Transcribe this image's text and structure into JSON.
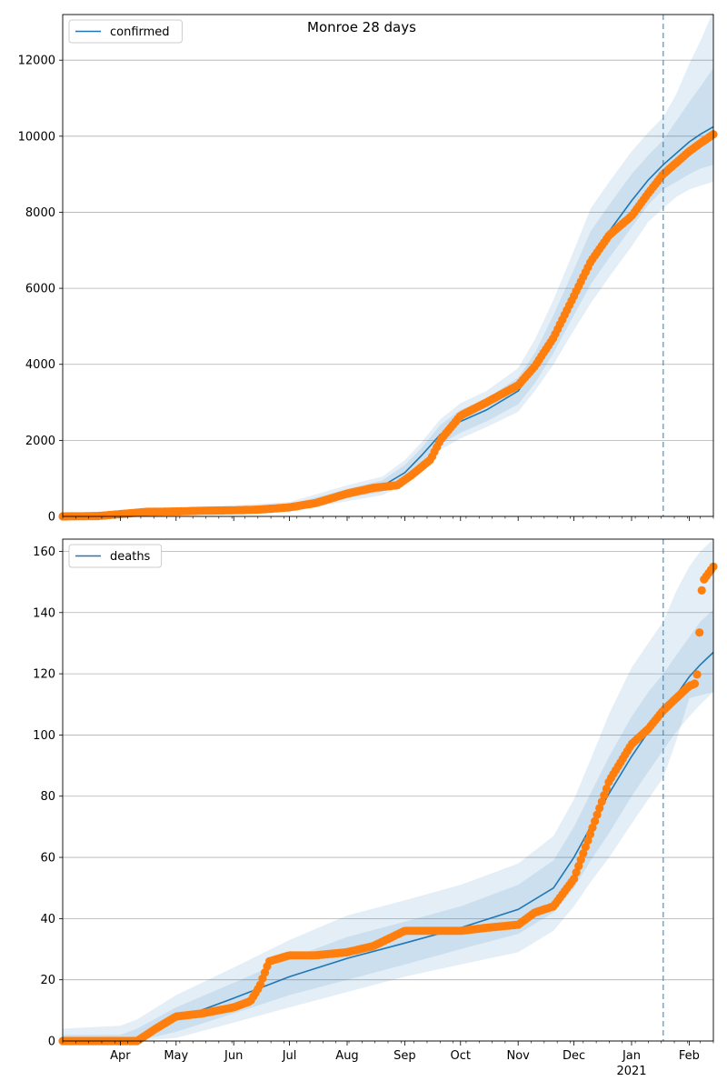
{
  "title": "Monroe 28 days",
  "colors": {
    "model_line": "#1f77b4",
    "band": "#1f77b4",
    "observed": "#ff7f0e",
    "grid": "#b0b0b0",
    "forecast_marker": "#1f77b4"
  },
  "x_axis": {
    "start": "2020-03-01",
    "end": "2021-02-14",
    "ticks": [
      {
        "date": "2020-04-01",
        "label": "Apr"
      },
      {
        "date": "2020-05-01",
        "label": "May"
      },
      {
        "date": "2020-06-01",
        "label": "Jun"
      },
      {
        "date": "2020-07-01",
        "label": "Jul"
      },
      {
        "date": "2020-08-01",
        "label": "Aug"
      },
      {
        "date": "2020-09-01",
        "label": "Sep"
      },
      {
        "date": "2020-10-01",
        "label": "Oct"
      },
      {
        "date": "2020-11-01",
        "label": "Nov"
      },
      {
        "date": "2020-12-01",
        "label": "Dec"
      },
      {
        "date": "2021-01-01",
        "label": "Jan"
      },
      {
        "date": "2021-02-01",
        "label": "Feb"
      }
    ],
    "year_label": "2021",
    "forecast_start": "2021-01-18"
  },
  "chart_data": [
    {
      "type": "line",
      "legend": "confirmed",
      "legend_position": "top-left",
      "grid": true,
      "ylim": [
        0,
        13200
      ],
      "yticks": [
        0,
        2000,
        4000,
        6000,
        8000,
        10000,
        12000
      ],
      "model": {
        "dates": [
          "2020-03-01",
          "2020-04-01",
          "2020-05-01",
          "2020-06-01",
          "2020-07-01",
          "2020-08-01",
          "2020-08-20",
          "2020-09-01",
          "2020-09-10",
          "2020-09-20",
          "2020-10-01",
          "2020-10-15",
          "2020-11-01",
          "2020-11-10",
          "2020-11-20",
          "2020-12-01",
          "2020-12-10",
          "2020-12-20",
          "2021-01-01",
          "2021-01-10",
          "2021-01-18",
          "2021-01-25",
          "2021-02-01",
          "2021-02-07",
          "2021-02-14"
        ],
        "values": [
          0,
          40,
          110,
          170,
          240,
          600,
          800,
          1150,
          1600,
          2150,
          2500,
          2800,
          3300,
          3900,
          4800,
          5900,
          6800,
          7500,
          8300,
          8850,
          9250,
          9550,
          9850,
          10050,
          10250
        ],
        "bands": [
          {
            "lo": [
              0,
              0,
              60,
              110,
              170,
              480,
              650,
              950,
              1400,
              1900,
              2200,
              2500,
              2950,
              3500,
              4300,
              5300,
              6100,
              6800,
              7600,
              8200,
              8600,
              8800,
              9000,
              9150,
              9250
            ],
            "hi": [
              0,
              80,
              160,
              230,
              310,
              720,
              950,
              1350,
              1800,
              2400,
              2800,
              3100,
              3650,
              4300,
              5300,
              6500,
              7500,
              8200,
              9000,
              9500,
              9900,
              10400,
              10900,
              11300,
              11800
            ]
          },
          {
            "lo": [
              0,
              0,
              30,
              70,
              120,
              400,
              560,
              850,
              1250,
              1750,
              2050,
              2350,
              2750,
              3300,
              4000,
              4900,
              5600,
              6300,
              7100,
              7750,
              8100,
              8400,
              8600,
              8700,
              8800
            ],
            "hi": [
              0,
              120,
              220,
              290,
              380,
              820,
              1050,
              1480,
              1950,
              2550,
              2980,
              3300,
              3900,
              4650,
              5700,
              7000,
              8100,
              8800,
              9600,
              10100,
              10500,
              11100,
              11900,
              12500,
              13300
            ]
          }
        ]
      },
      "observed": {
        "dates": [
          "2020-03-01",
          "2020-03-20",
          "2020-04-01",
          "2020-04-15",
          "2020-05-01",
          "2020-05-15",
          "2020-06-01",
          "2020-06-15",
          "2020-07-01",
          "2020-07-15",
          "2020-08-01",
          "2020-08-15",
          "2020-08-28",
          "2020-09-05",
          "2020-09-15",
          "2020-09-20",
          "2020-10-01",
          "2020-10-15",
          "2020-11-01",
          "2020-11-10",
          "2020-11-20",
          "2020-12-01",
          "2020-12-10",
          "2020-12-20",
          "2021-01-01",
          "2021-01-10",
          "2021-01-18",
          "2021-01-25",
          "2021-02-01",
          "2021-02-08",
          "2021-02-14"
        ],
        "values": [
          0,
          10,
          60,
          120,
          130,
          150,
          160,
          180,
          240,
          350,
          600,
          750,
          820,
          1100,
          1500,
          2000,
          2650,
          3000,
          3450,
          3950,
          4700,
          5800,
          6700,
          7400,
          7900,
          8500,
          9000,
          9300,
          9600,
          9850,
          10050
        ]
      }
    },
    {
      "type": "line",
      "legend": "deaths",
      "legend_position": "top-left",
      "grid": true,
      "ylim": [
        0,
        164
      ],
      "yticks": [
        0,
        20,
        40,
        60,
        80,
        100,
        120,
        140,
        160
      ],
      "model": {
        "dates": [
          "2020-03-01",
          "2020-04-01",
          "2020-04-10",
          "2020-05-01",
          "2020-06-01",
          "2020-07-01",
          "2020-08-01",
          "2020-09-01",
          "2020-10-01",
          "2020-11-01",
          "2020-11-20",
          "2020-12-01",
          "2020-12-10",
          "2020-12-20",
          "2021-01-01",
          "2021-01-10",
          "2021-01-18",
          "2021-01-25",
          "2021-02-01",
          "2021-02-07",
          "2021-02-14"
        ],
        "values": [
          0,
          0,
          1,
          7,
          14,
          21,
          27,
          32,
          37,
          43,
          50,
          60,
          70,
          81,
          93,
          101,
          107,
          113,
          119,
          123,
          127
        ],
        "bands": [
          {
            "lo": [
              0,
              0,
              0,
              3,
              9,
              15,
              20,
              25,
              30,
              35,
              42,
              50,
              59,
              68,
              80,
              88,
              95,
              101,
              106,
              110,
              114
            ],
            "hi": [
              2,
              2,
              4,
              11,
              19,
              27,
              34,
              39,
              44,
              51,
              59,
              70,
              81,
              93,
              106,
              114,
              120,
              126,
              132,
              137,
              141
            ]
          },
          {
            "lo": [
              0,
              0,
              0,
              1,
              6,
              11,
              16,
              21,
              25,
              29,
              36,
              44,
              52,
              60,
              71,
              79,
              86,
              98,
              112,
              113,
              114
            ],
            "hi": [
              4,
              5,
              7,
              15,
              24,
              33,
              41,
              46,
              51,
              58,
              67,
              79,
              92,
              107,
              122,
              130,
              137,
              147,
              155,
              160,
              164
            ]
          }
        ]
      },
      "observed": {
        "dates": [
          "2020-03-01",
          "2020-04-10",
          "2020-04-20",
          "2020-05-01",
          "2020-05-15",
          "2020-06-01",
          "2020-06-10",
          "2020-06-15",
          "2020-06-20",
          "2020-07-01",
          "2020-07-15",
          "2020-08-01",
          "2020-08-15",
          "2020-09-01",
          "2020-09-15",
          "2020-10-01",
          "2020-10-15",
          "2020-11-01",
          "2020-11-10",
          "2020-11-20",
          "2020-12-01",
          "2020-12-10",
          "2020-12-20",
          "2021-01-01",
          "2021-01-10",
          "2021-01-18",
          "2021-01-25",
          "2021-02-01",
          "2021-02-05",
          "2021-02-08",
          "2021-02-14"
        ],
        "values": [
          0,
          0,
          4,
          8,
          9,
          11,
          13,
          18,
          26,
          28,
          28,
          29,
          31,
          36,
          36,
          36,
          37,
          38,
          42,
          44,
          53,
          68,
          85,
          97,
          102,
          108,
          112,
          116,
          117,
          150,
          155
        ]
      }
    }
  ]
}
